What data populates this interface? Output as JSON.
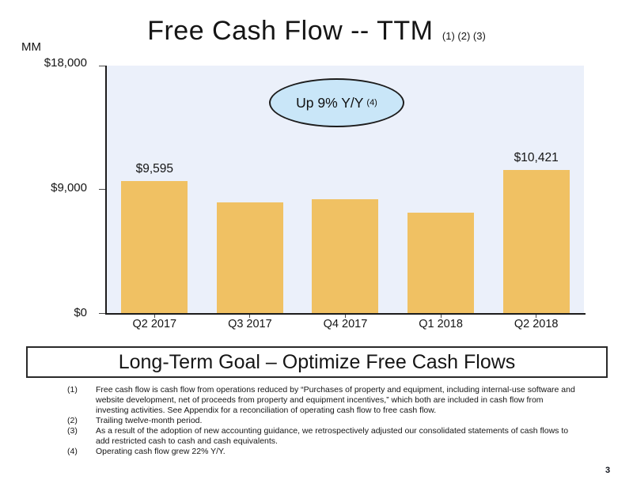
{
  "page": {
    "title": "Free Cash Flow -- TTM",
    "title_superscript": "(1) (2) (3)",
    "units_label": "MM",
    "goal_banner": "Long-Term Goal – Optimize Free Cash Flows",
    "page_number": "3"
  },
  "chart_data": {
    "type": "bar",
    "title": "Free Cash Flow -- TTM (1) (2) (3)",
    "categories": [
      "Q2 2017",
      "Q3 2017",
      "Q4 2017",
      "Q1 2018",
      "Q2 2018"
    ],
    "values": [
      9595,
      8050,
      8307,
      7301,
      10421
    ],
    "data_labels": [
      "$9,595",
      "",
      "",
      "",
      "$10,421"
    ],
    "xlabel": "",
    "ylabel": "MM",
    "ylim": [
      0,
      18000
    ],
    "y_ticks": [
      {
        "label": "$18,000",
        "value": 18000
      },
      {
        "label": "$9,000",
        "value": 9000
      },
      {
        "label": "$0",
        "value": 0
      }
    ],
    "grid": false,
    "legend": "none",
    "annotation": {
      "text": "Up 9% Y/Y",
      "superscript": "(4)"
    },
    "colors": {
      "bar_fill": "#F0C163",
      "plot_background": "#EBF0FA",
      "annotation_fill": "#C9E6F8",
      "axis_line": "#1c1c1c"
    }
  },
  "footnotes": [
    {
      "num": "(1)",
      "text": "Free cash flow is cash flow from operations reduced by “Purchases of property and equipment, including internal-use software and website development, net of proceeds from property and equipment incentives,” which both are included in cash flow from investing activities. See Appendix for a reconciliation of operating cash flow to free cash flow."
    },
    {
      "num": "(2)",
      "text": "Trailing twelve-month period."
    },
    {
      "num": "(3)",
      "text": "As a result of the adoption of new accounting guidance, we retrospectively adjusted our consolidated statements of cash flows to add restricted cash to cash and cash equivalents."
    },
    {
      "num": "(4)",
      "text": "Operating cash flow grew 22% Y/Y."
    }
  ]
}
